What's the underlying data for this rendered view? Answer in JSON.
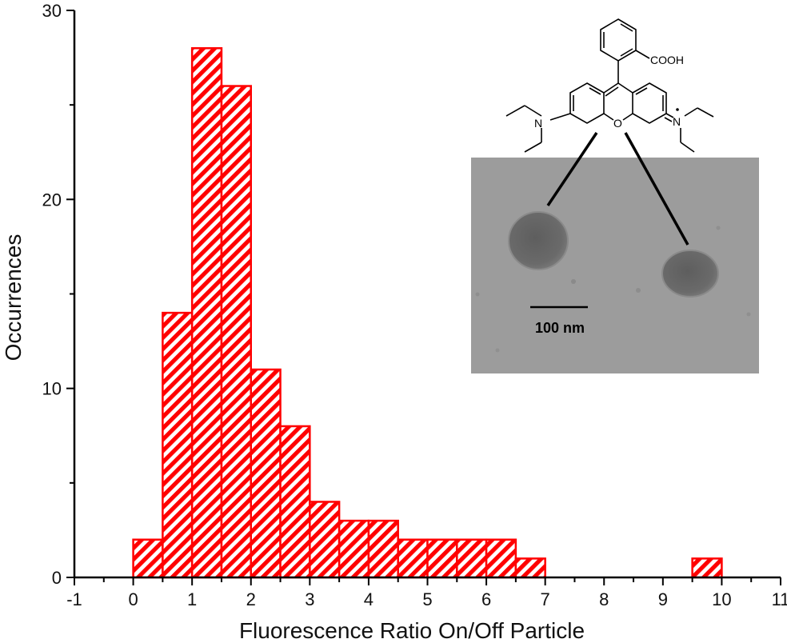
{
  "chart_data": {
    "type": "bar",
    "subtype": "histogram",
    "xlabel": "Fluorescence Ratio On/Off Particle",
    "ylabel": "Occurrences",
    "xlim": [
      -1,
      11
    ],
    "ylim": [
      0,
      30
    ],
    "x_ticks": [
      -1,
      0,
      1,
      2,
      3,
      4,
      5,
      6,
      7,
      8,
      9,
      10,
      11
    ],
    "y_ticks": [
      0,
      10,
      20,
      30
    ],
    "bin_width": 0.5,
    "bins": [
      {
        "start": 0.0,
        "end": 0.5,
        "value": 2
      },
      {
        "start": 0.5,
        "end": 1.0,
        "value": 14
      },
      {
        "start": 1.0,
        "end": 1.5,
        "value": 28
      },
      {
        "start": 1.5,
        "end": 2.0,
        "value": 26
      },
      {
        "start": 2.0,
        "end": 2.5,
        "value": 11
      },
      {
        "start": 2.5,
        "end": 3.0,
        "value": 8
      },
      {
        "start": 3.0,
        "end": 3.5,
        "value": 4
      },
      {
        "start": 3.5,
        "end": 4.0,
        "value": 3
      },
      {
        "start": 4.0,
        "end": 4.5,
        "value": 3
      },
      {
        "start": 4.5,
        "end": 5.0,
        "value": 2
      },
      {
        "start": 5.0,
        "end": 5.5,
        "value": 2
      },
      {
        "start": 5.5,
        "end": 6.0,
        "value": 2
      },
      {
        "start": 6.0,
        "end": 6.5,
        "value": 2
      },
      {
        "start": 6.5,
        "end": 7.0,
        "value": 1
      },
      {
        "start": 9.5,
        "end": 10.0,
        "value": 1
      }
    ],
    "bar_color": "#ff0000",
    "bar_fill": "diagonal hatch",
    "grid": false,
    "inset": {
      "molecule_label": "COOH",
      "atom_labels": [
        "N",
        "O",
        "N"
      ],
      "scale_bar_label": "100 nm"
    }
  }
}
